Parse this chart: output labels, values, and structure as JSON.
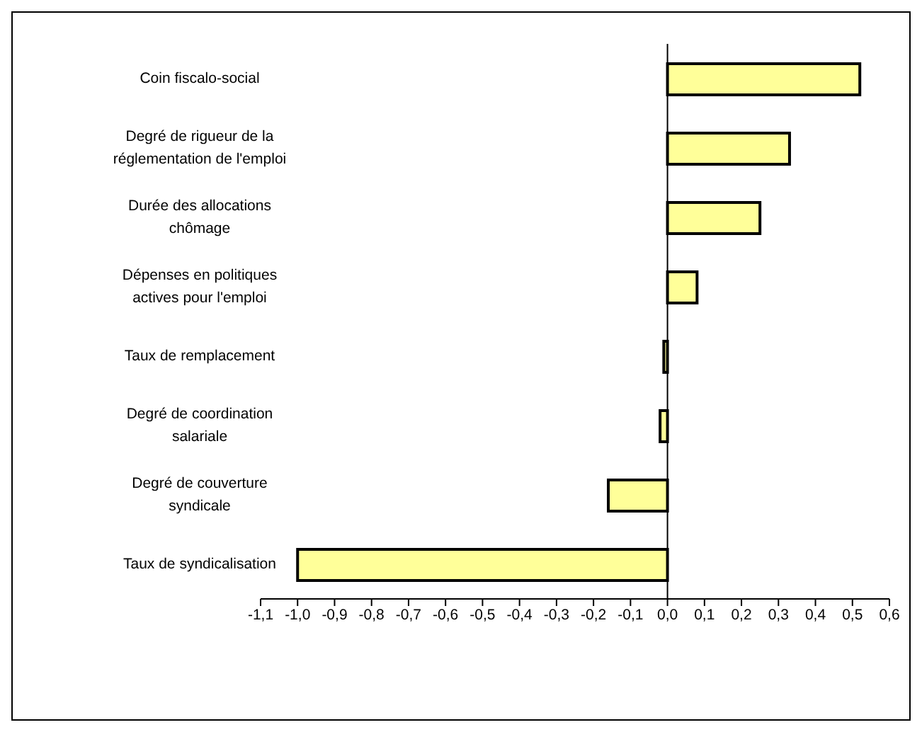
{
  "chart_data": {
    "type": "bar",
    "orientation": "horizontal",
    "categories": [
      "Coin fiscalo-social",
      "Degré de rigueur de la réglementation de l'emploi",
      "Durée des allocations chômage",
      "Dépenses en politiques actives pour l'emploi",
      "Taux de remplacement",
      "Degré de coordination salariale",
      "Degré de couverture syndicale",
      "Taux de syndicalisation"
    ],
    "values": [
      0.52,
      0.33,
      0.25,
      0.08,
      -0.01,
      -0.02,
      -0.16,
      -1.0
    ],
    "color": "#ffff99",
    "xlim": [
      -1.1,
      0.6
    ],
    "xticks": [
      {
        "value": -1.1,
        "label": "-1,1"
      },
      {
        "value": -1.0,
        "label": "-1,0"
      },
      {
        "value": -0.9,
        "label": "-0,9"
      },
      {
        "value": -0.8,
        "label": "-0,8"
      },
      {
        "value": -0.7,
        "label": "-0,7"
      },
      {
        "value": -0.6,
        "label": "-0,6"
      },
      {
        "value": -0.5,
        "label": "-0,5"
      },
      {
        "value": -0.4,
        "label": "-0,4"
      },
      {
        "value": -0.3,
        "label": "-0,3"
      },
      {
        "value": -0.2,
        "label": "-0,2"
      },
      {
        "value": -0.1,
        "label": "-0,1"
      },
      {
        "value": 0,
        "label": "0,0"
      },
      {
        "value": 0.1,
        "label": "0,1"
      },
      {
        "value": 0.2,
        "label": "0,2"
      },
      {
        "value": 0.3,
        "label": "0,3"
      },
      {
        "value": 0.4,
        "label": "0,4"
      },
      {
        "value": 0.5,
        "label": "0,5"
      },
      {
        "value": 0.6,
        "label": "0,6"
      }
    ],
    "legend": false
  }
}
